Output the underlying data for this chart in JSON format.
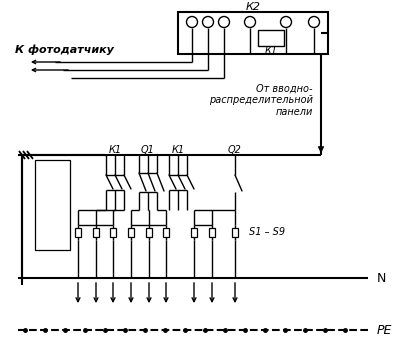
{
  "bg_color": "#ffffff",
  "line_color": "#000000",
  "figsize": [
    4.0,
    3.56
  ],
  "dpi": 100,
  "label_k2": "К2",
  "label_k1_coil": "К1",
  "label_k_fotodatchik": "К фотодатчику",
  "label_ot_vvodno": "От вводно-\nраспределительной\nпанели",
  "label_n": "N",
  "label_pe": "PE",
  "label_k1_left": "К1",
  "label_q1": "Q1",
  "label_k1_right": "К1",
  "label_q2": "Q2",
  "label_s1s9": "S1 – S9"
}
